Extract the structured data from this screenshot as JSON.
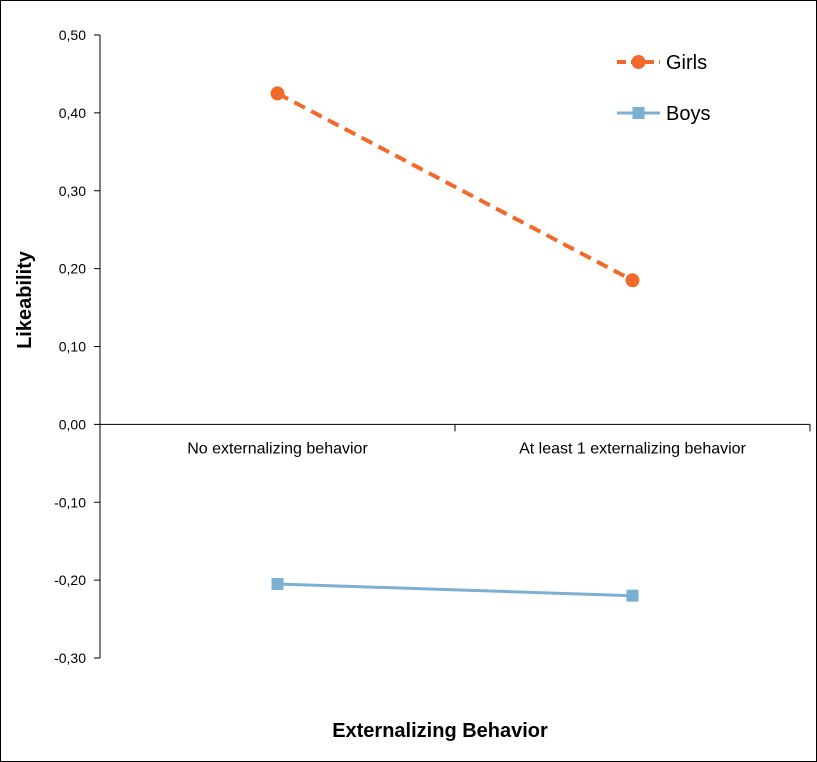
{
  "chart_data": {
    "type": "line",
    "title": "",
    "xlabel": "Externalizing Behavior",
    "ylabel": "Likeability",
    "categories": [
      "No externalizing behavior",
      "At least 1 externalizing behavior"
    ],
    "ylim": [
      -0.3,
      0.5
    ],
    "yticks": [
      0.5,
      0.4,
      0.3,
      0.2,
      0.1,
      0.0,
      -0.1,
      -0.2,
      -0.3
    ],
    "ytick_labels": [
      "0,50",
      "0,40",
      "0,30",
      "0,20",
      "0,10",
      "0,00",
      "-0,10",
      "-0,20",
      "-0,30"
    ],
    "grid": false,
    "legend_position": "top-right",
    "series": [
      {
        "name": "Girls",
        "values": [
          0.425,
          0.185
        ],
        "color": "#f26a2b",
        "line_style": "dashed",
        "marker": "circle"
      },
      {
        "name": "Boys",
        "values": [
          -0.205,
          -0.22
        ],
        "color": "#7bafd4",
        "line_style": "solid",
        "marker": "square"
      }
    ]
  }
}
